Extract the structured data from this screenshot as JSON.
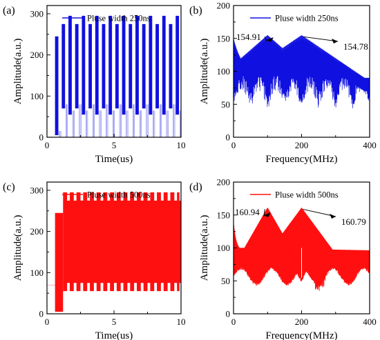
{
  "chart_data": [
    {
      "id": "a",
      "panel_label": "(a)",
      "type": "line",
      "legend": "Pluse width 250ns",
      "color": "#1010e0",
      "xlabel": "Time(us)",
      "ylabel": "Amplitude(a.u.)",
      "xlim": [
        0,
        10
      ],
      "ylim": [
        0,
        320
      ],
      "xticks": [
        0,
        5,
        10
      ],
      "yticks": [
        0,
        100,
        200,
        300
      ],
      "legend_position": "top-right",
      "pulse_train": {
        "first_pulse_start": 0.6,
        "period": 0.5,
        "on_fraction": 0.5,
        "first_pulse": {
          "high": 245,
          "low": 5
        },
        "levels_alternating": [
          {
            "high": 275,
            "low": 70
          },
          {
            "high": 295,
            "low": 55
          }
        ]
      }
    },
    {
      "id": "b",
      "panel_label": "(b)",
      "type": "line",
      "legend": "Pluse width 250ns",
      "color": "#1010e0",
      "xlabel": "Frequency(MHz)",
      "ylabel": "Amplitude(a.u.)",
      "xlim": [
        0,
        400
      ],
      "ylim": [
        0,
        200
      ],
      "xticks": [
        0,
        200,
        400
      ],
      "yticks": [
        0,
        50,
        100,
        150,
        200
      ],
      "legend_position": "top-right",
      "peaks": [
        {
          "x": 100,
          "y": 154.91,
          "label": "154.91"
        },
        {
          "x": 200,
          "y": 154.78,
          "label": "154.78"
        }
      ]
    },
    {
      "id": "c",
      "panel_label": "(c)",
      "type": "line",
      "legend": "Pluse width 500ns",
      "color": "#ff1010",
      "xlabel": "Time(us)",
      "ylabel": "Amplitude(a.u.)",
      "xlim": [
        0,
        10
      ],
      "ylim": [
        0,
        320
      ],
      "xticks": [
        0,
        5,
        10
      ],
      "yticks": [
        0,
        100,
        200,
        300
      ],
      "legend_position": "top-right",
      "pulse_train": {
        "first_pulse_start": 0.6,
        "first_pulse": {
          "high": 245,
          "low": 5
        },
        "band": {
          "high_upper": 295,
          "high_lower": 275,
          "low_upper": 75,
          "low_lower": 55
        },
        "notch_period": 0.5
      }
    },
    {
      "id": "d",
      "panel_label": "(d)",
      "type": "line",
      "legend": "Pluse width 500ns",
      "color": "#ff1010",
      "xlabel": "Frequency(MHz)",
      "ylabel": "Amplitude(a.u.)",
      "xlim": [
        0,
        400
      ],
      "ylim": [
        0,
        200
      ],
      "xticks": [
        0,
        200,
        400
      ],
      "yticks": [
        0,
        50,
        100,
        150,
        200
      ],
      "legend_position": "top-right",
      "peaks": [
        {
          "x": 100,
          "y": 160.94,
          "label": "160.94"
        },
        {
          "x": 200,
          "y": 160.79,
          "label": "160.79"
        }
      ]
    }
  ]
}
